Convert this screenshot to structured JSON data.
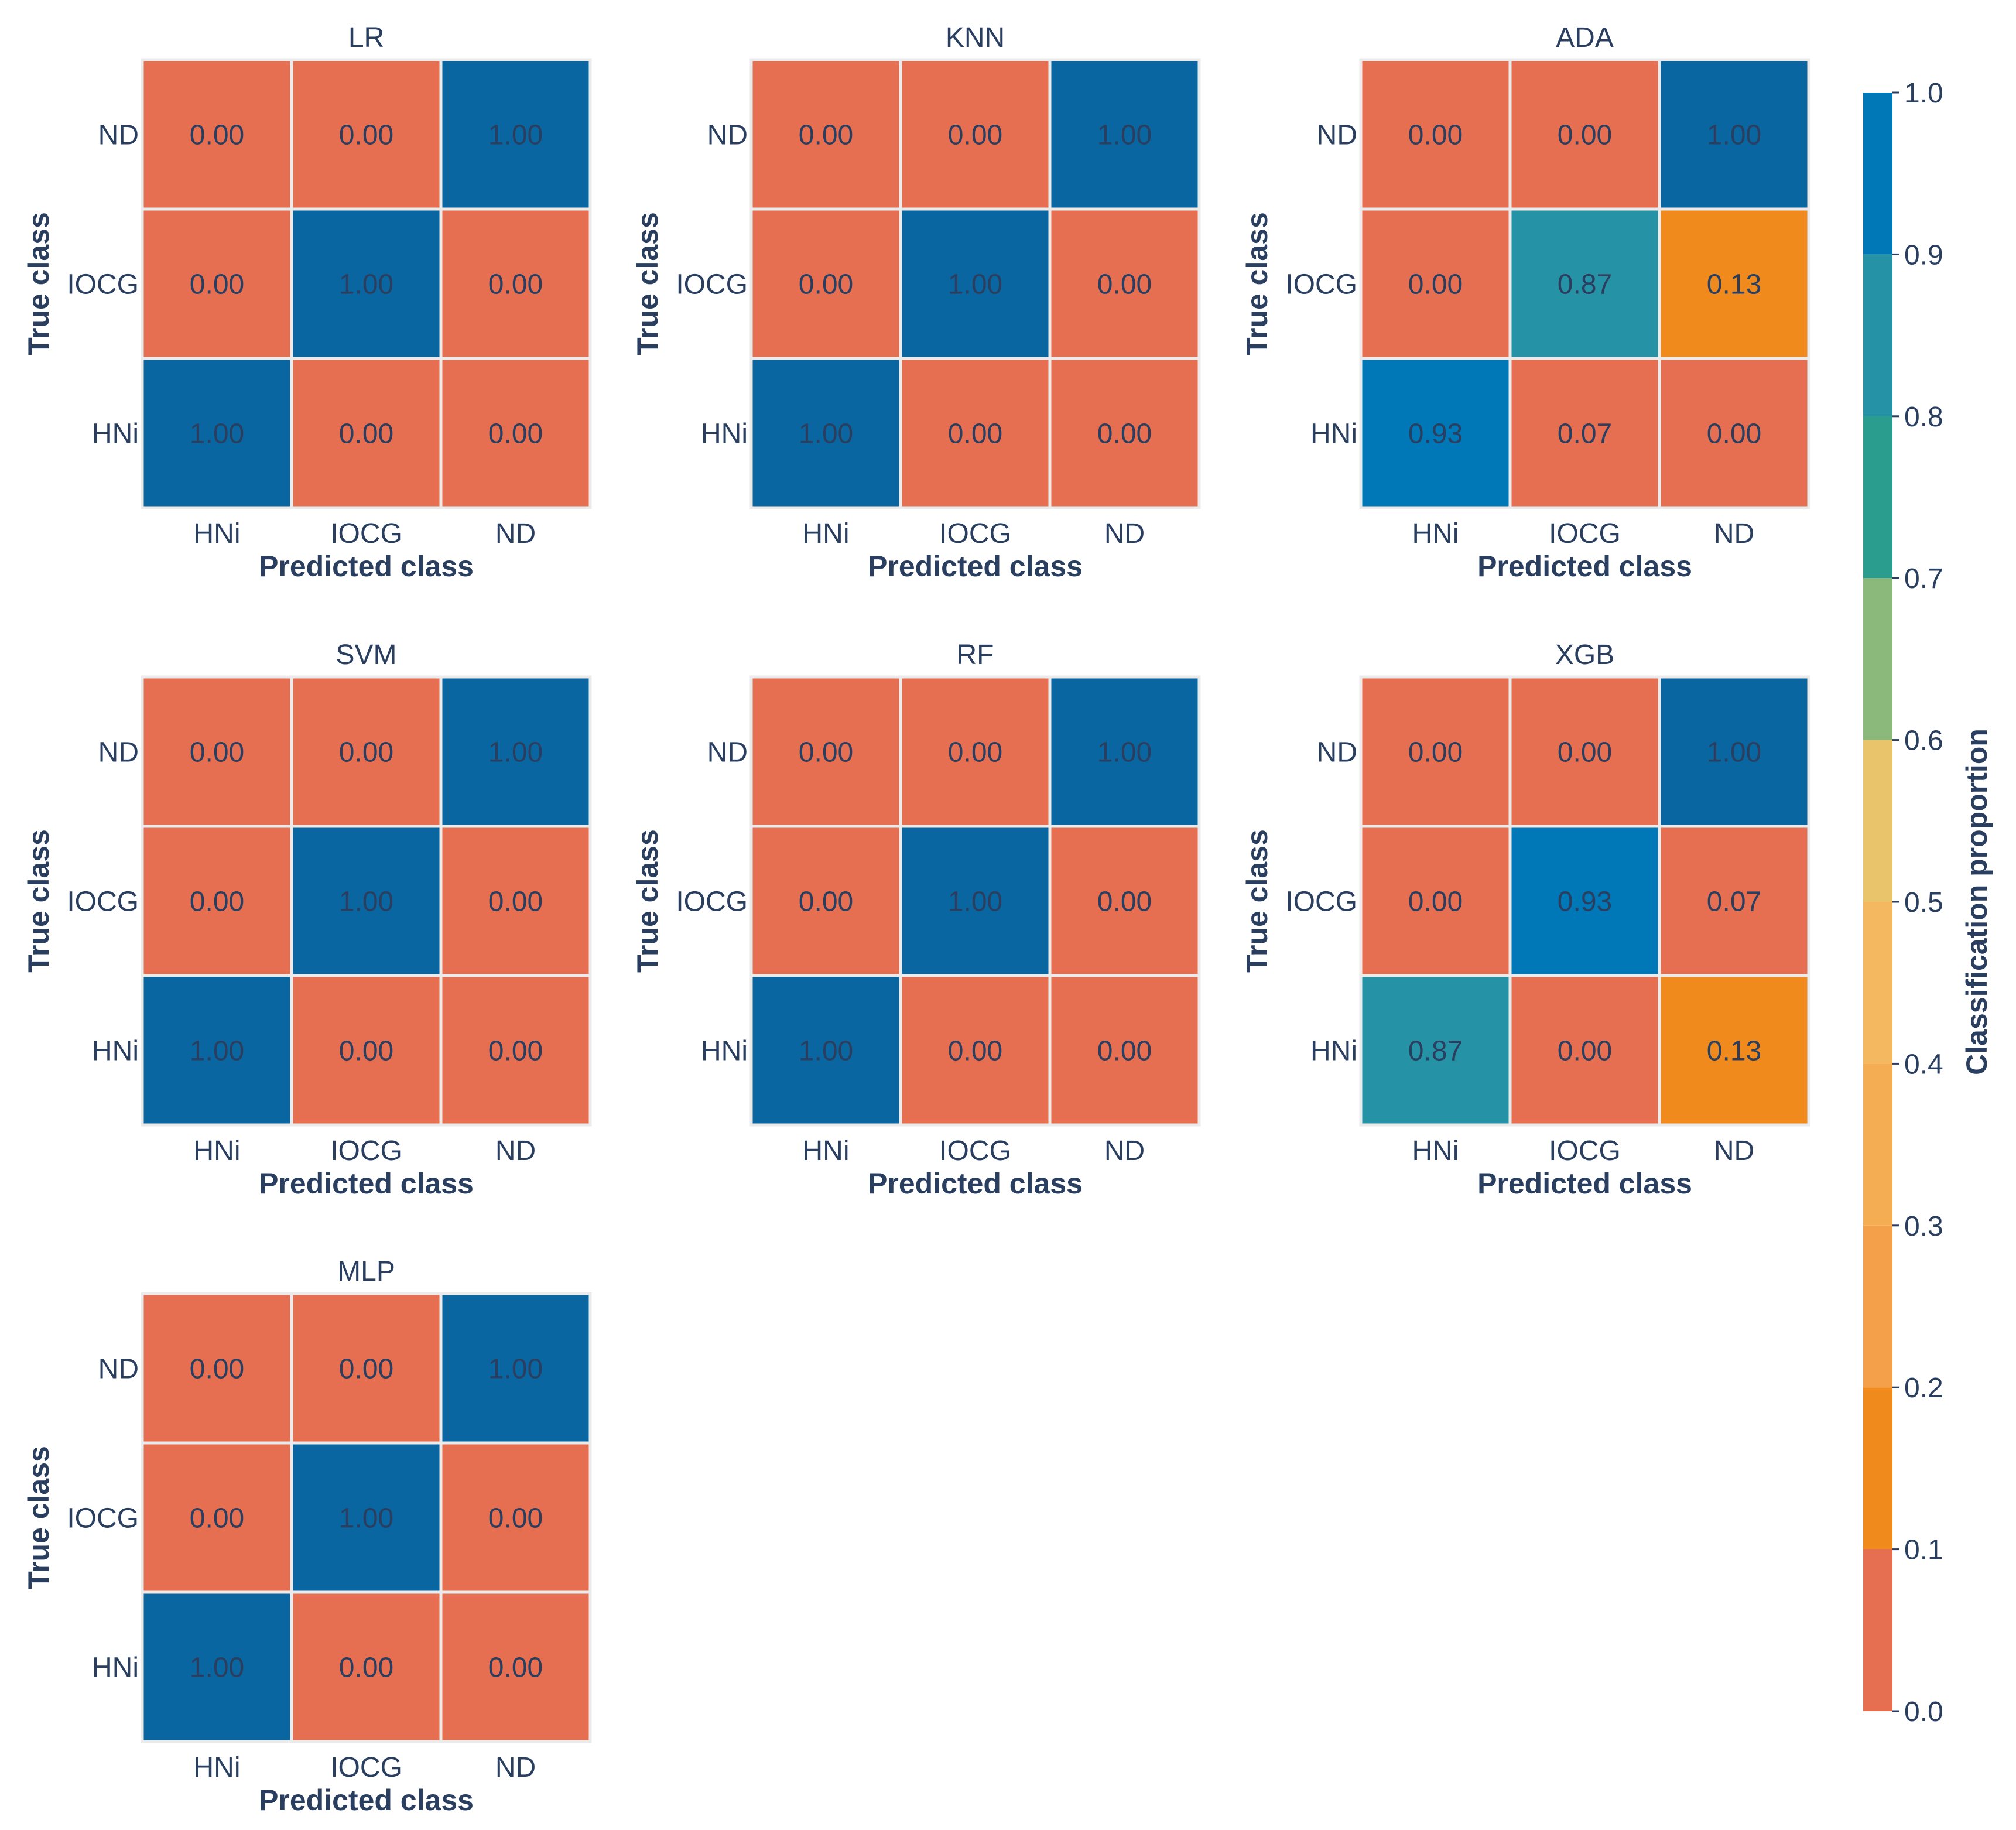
{
  "figure": {
    "colorbar": {
      "label": "Classification proportion",
      "ticks": [
        "0.0",
        "0.1",
        "0.2",
        "0.3",
        "0.4",
        "0.5",
        "0.6",
        "0.7",
        "0.8",
        "0.9",
        "1.0"
      ],
      "levels": [
        {
          "from": 0.0,
          "to": 0.1,
          "color": "#e76f51"
        },
        {
          "from": 0.1,
          "to": 0.2,
          "color": "#f08a1c"
        },
        {
          "from": 0.2,
          "to": 0.3,
          "color": "#f4a04a"
        },
        {
          "from": 0.3,
          "to": 0.4,
          "color": "#f5ad54"
        },
        {
          "from": 0.4,
          "to": 0.5,
          "color": "#f4b860"
        },
        {
          "from": 0.5,
          "to": 0.6,
          "color": "#e9c46a"
        },
        {
          "from": 0.6,
          "to": 0.7,
          "color": "#8ab97b"
        },
        {
          "from": 0.7,
          "to": 0.8,
          "color": "#2a9d8f"
        },
        {
          "from": 0.8,
          "to": 0.9,
          "color": "#2593a5"
        },
        {
          "from": 0.9,
          "to": 1.0,
          "color": "#0077b6"
        },
        {
          "from": 1.0,
          "to": 1.0,
          "color": "#0a66a0"
        }
      ]
    },
    "text_color": "#2a3f5f",
    "grid_line_color": "#ebebeb"
  },
  "chart_data": [
    {
      "type": "heatmap",
      "title": "LR",
      "xlabel": "Predicted class",
      "ylabel": "True class",
      "x_categories": [
        "HNi",
        "IOCG",
        "ND"
      ],
      "y_categories": [
        "ND",
        "IOCG",
        "HNi"
      ],
      "values": [
        [
          0.0,
          0.0,
          1.0
        ],
        [
          0.0,
          1.0,
          0.0
        ],
        [
          1.0,
          0.0,
          0.0
        ]
      ],
      "labels": [
        [
          "0.00",
          "0.00",
          "1.00"
        ],
        [
          "0.00",
          "1.00",
          "0.00"
        ],
        [
          "1.00",
          "0.00",
          "0.00"
        ]
      ]
    },
    {
      "type": "heatmap",
      "title": "KNN",
      "xlabel": "Predicted class",
      "ylabel": "True class",
      "x_categories": [
        "HNi",
        "IOCG",
        "ND"
      ],
      "y_categories": [
        "ND",
        "IOCG",
        "HNi"
      ],
      "values": [
        [
          0.0,
          0.0,
          1.0
        ],
        [
          0.0,
          1.0,
          0.0
        ],
        [
          1.0,
          0.0,
          0.0
        ]
      ],
      "labels": [
        [
          "0.00",
          "0.00",
          "1.00"
        ],
        [
          "0.00",
          "1.00",
          "0.00"
        ],
        [
          "1.00",
          "0.00",
          "0.00"
        ]
      ]
    },
    {
      "type": "heatmap",
      "title": "ADA",
      "xlabel": "Predicted class",
      "ylabel": "True class",
      "x_categories": [
        "HNi",
        "IOCG",
        "ND"
      ],
      "y_categories": [
        "ND",
        "IOCG",
        "HNi"
      ],
      "values": [
        [
          0.0,
          0.0,
          1.0
        ],
        [
          0.0,
          0.87,
          0.13
        ],
        [
          0.93,
          0.07,
          0.0
        ]
      ],
      "labels": [
        [
          "0.00",
          "0.00",
          "1.00"
        ],
        [
          "0.00",
          "0.87",
          "0.13"
        ],
        [
          "0.93",
          "0.07",
          "0.00"
        ]
      ]
    },
    {
      "type": "heatmap",
      "title": "SVM",
      "xlabel": "Predicted class",
      "ylabel": "True class",
      "x_categories": [
        "HNi",
        "IOCG",
        "ND"
      ],
      "y_categories": [
        "ND",
        "IOCG",
        "HNi"
      ],
      "values": [
        [
          0.0,
          0.0,
          1.0
        ],
        [
          0.0,
          1.0,
          0.0
        ],
        [
          1.0,
          0.0,
          0.0
        ]
      ],
      "labels": [
        [
          "0.00",
          "0.00",
          "1.00"
        ],
        [
          "0.00",
          "1.00",
          "0.00"
        ],
        [
          "1.00",
          "0.00",
          "0.00"
        ]
      ]
    },
    {
      "type": "heatmap",
      "title": "RF",
      "xlabel": "Predicted class",
      "ylabel": "True class",
      "x_categories": [
        "HNi",
        "IOCG",
        "ND"
      ],
      "y_categories": [
        "ND",
        "IOCG",
        "HNi"
      ],
      "values": [
        [
          0.0,
          0.0,
          1.0
        ],
        [
          0.0,
          1.0,
          0.0
        ],
        [
          1.0,
          0.0,
          0.0
        ]
      ],
      "labels": [
        [
          "0.00",
          "0.00",
          "1.00"
        ],
        [
          "0.00",
          "1.00",
          "0.00"
        ],
        [
          "1.00",
          "0.00",
          "0.00"
        ]
      ]
    },
    {
      "type": "heatmap",
      "title": "XGB",
      "xlabel": "Predicted class",
      "ylabel": "True class",
      "x_categories": [
        "HNi",
        "IOCG",
        "ND"
      ],
      "y_categories": [
        "ND",
        "IOCG",
        "HNi"
      ],
      "values": [
        [
          0.0,
          0.0,
          1.0
        ],
        [
          0.0,
          0.93,
          0.07
        ],
        [
          0.87,
          0.0,
          0.13
        ]
      ],
      "labels": [
        [
          "0.00",
          "0.00",
          "1.00"
        ],
        [
          "0.00",
          "0.93",
          "0.07"
        ],
        [
          "0.87",
          "0.00",
          "0.13"
        ]
      ]
    },
    {
      "type": "heatmap",
      "title": "MLP",
      "xlabel": "Predicted class",
      "ylabel": "True class",
      "x_categories": [
        "HNi",
        "IOCG",
        "ND"
      ],
      "y_categories": [
        "ND",
        "IOCG",
        "HNi"
      ],
      "values": [
        [
          0.0,
          0.0,
          1.0
        ],
        [
          0.0,
          1.0,
          0.0
        ],
        [
          1.0,
          0.0,
          0.0
        ]
      ],
      "labels": [
        [
          "0.00",
          "0.00",
          "1.00"
        ],
        [
          "0.00",
          "1.00",
          "0.00"
        ],
        [
          "1.00",
          "0.00",
          "0.00"
        ]
      ]
    }
  ]
}
